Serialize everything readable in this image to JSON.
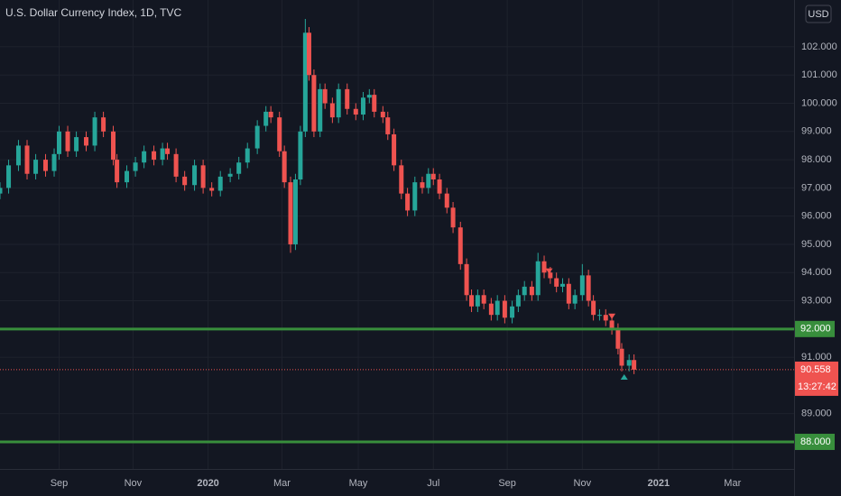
{
  "chart_data": {
    "type": "candlestick",
    "title": "U.S. Dollar Currency Index, 1D, TVC",
    "currency": "USD",
    "up_color": "#26a69a",
    "down_color": "#ef5350",
    "grid": true,
    "xlim": [
      0,
      645
    ],
    "ylim": [
      87.04,
      103.66
    ],
    "xticks": [
      {
        "value": 48,
        "label": "Sep"
      },
      {
        "value": 108,
        "label": "Nov"
      },
      {
        "value": 169,
        "label": "2020"
      },
      {
        "value": 229,
        "label": "Mar"
      },
      {
        "value": 291,
        "label": "May"
      },
      {
        "value": 352,
        "label": "Jul"
      },
      {
        "value": 412,
        "label": "Sep"
      },
      {
        "value": 473,
        "label": "Nov"
      },
      {
        "value": 535,
        "label": "2021"
      },
      {
        "value": 595,
        "label": "Mar"
      }
    ],
    "yticks": [
      {
        "value": 89,
        "label": "89.000"
      },
      {
        "value": 91,
        "label": "91.000"
      },
      {
        "value": 93,
        "label": "93.000"
      },
      {
        "value": 94,
        "label": "94.000"
      },
      {
        "value": 95,
        "label": "95.000"
      },
      {
        "value": 96,
        "label": "96.000"
      },
      {
        "value": 97,
        "label": "97.000"
      },
      {
        "value": 98,
        "label": "98.000"
      },
      {
        "value": 99,
        "label": "99.000"
      },
      {
        "value": 100,
        "label": "100.000"
      },
      {
        "value": 101,
        "label": "101.000"
      },
      {
        "value": 102,
        "label": "102.000"
      }
    ],
    "x": [
      0,
      7,
      15,
      22,
      29,
      37,
      44,
      48,
      55,
      62,
      70,
      77,
      84,
      92,
      95,
      103,
      110,
      117,
      125,
      132,
      136,
      143,
      150,
      158,
      165,
      172,
      179,
      187,
      194,
      201,
      209,
      216,
      220,
      227,
      231,
      236,
      240,
      244,
      248,
      251,
      255,
      260,
      264,
      270,
      275,
      282,
      289,
      295,
      300,
      304,
      311,
      315,
      320,
      326,
      331,
      337,
      343,
      348,
      352,
      357,
      363,
      368,
      374,
      379,
      383,
      388,
      393,
      399,
      404,
      410,
      416,
      421,
      426,
      432,
      437,
      442,
      447,
      452,
      457,
      462,
      467,
      473,
      478,
      482,
      487,
      492,
      497,
      502,
      505,
      511,
      515
    ],
    "open": [
      96.8,
      97.0,
      97.8,
      98.5,
      97.5,
      98.0,
      97.6,
      98.2,
      99.0,
      98.3,
      98.8,
      98.5,
      99.5,
      99.0,
      98.0,
      97.2,
      97.6,
      97.9,
      98.3,
      98.0,
      98.4,
      98.2,
      97.4,
      97.1,
      97.8,
      97.0,
      96.9,
      97.4,
      97.5,
      97.9,
      98.4,
      99.2,
      99.7,
      99.5,
      98.3,
      97.2,
      95.0,
      97.3,
      99.0,
      102.5,
      101.0,
      99.0,
      100.5,
      100.0,
      99.5,
      100.5,
      99.8,
      99.6,
      100.2,
      100.3,
      99.7,
      99.5,
      98.9,
      97.8,
      96.8,
      96.2,
      97.2,
      97.0,
      97.5,
      97.3,
      96.8,
      96.3,
      95.6,
      94.3,
      93.2,
      92.8,
      93.2,
      92.9,
      92.5,
      93.0,
      92.4,
      92.8,
      93.2,
      93.5,
      93.2,
      94.4,
      94.0,
      93.8,
      93.5,
      93.6,
      92.9,
      93.2,
      93.9,
      93.0,
      92.5,
      92.5,
      92.3,
      92.0,
      91.3,
      90.7,
      90.9
    ],
    "high": [
      97.2,
      98.0,
      98.7,
      98.7,
      98.2,
      98.2,
      98.4,
      99.2,
      99.2,
      99.0,
      99.0,
      99.7,
      99.7,
      99.2,
      98.2,
      97.8,
      98.1,
      98.5,
      98.5,
      98.6,
      98.6,
      98.4,
      97.6,
      98.0,
      98.0,
      97.2,
      97.6,
      97.7,
      98.1,
      98.6,
      99.4,
      99.9,
      99.9,
      99.7,
      98.5,
      97.4,
      97.5,
      99.2,
      102.99,
      102.7,
      101.2,
      100.7,
      100.7,
      100.2,
      100.7,
      100.7,
      100.0,
      100.4,
      100.5,
      100.5,
      99.9,
      99.7,
      99.1,
      98.0,
      97.0,
      97.4,
      97.4,
      97.7,
      97.7,
      97.5,
      97.0,
      96.5,
      95.8,
      94.5,
      93.4,
      93.4,
      93.4,
      93.1,
      93.2,
      93.2,
      93.0,
      93.4,
      93.7,
      93.7,
      94.7,
      94.6,
      94.2,
      94.0,
      93.8,
      93.8,
      93.4,
      94.3,
      94.1,
      93.2,
      92.7,
      92.7,
      92.5,
      92.2,
      91.5,
      91.1,
      91.1
    ],
    "low": [
      96.6,
      96.8,
      97.6,
      97.3,
      97.3,
      97.4,
      97.4,
      98.0,
      98.1,
      98.1,
      98.3,
      98.3,
      98.8,
      97.8,
      97.0,
      97.0,
      97.4,
      97.7,
      97.8,
      97.8,
      98.0,
      97.2,
      96.9,
      96.9,
      96.8,
      96.7,
      96.7,
      97.2,
      97.3,
      97.7,
      98.2,
      99.0,
      99.3,
      98.1,
      97.0,
      94.7,
      94.8,
      97.1,
      98.8,
      100.8,
      98.8,
      98.8,
      99.8,
      99.3,
      99.3,
      99.6,
      99.4,
      99.4,
      100.0,
      99.5,
      99.3,
      98.7,
      97.6,
      96.6,
      96.0,
      96.0,
      96.8,
      96.8,
      97.1,
      96.6,
      96.1,
      95.4,
      94.1,
      93.0,
      92.6,
      92.6,
      92.7,
      92.3,
      92.3,
      92.2,
      92.2,
      92.6,
      93.0,
      93.0,
      93.0,
      93.8,
      93.6,
      93.3,
      93.3,
      92.7,
      92.7,
      93.0,
      92.8,
      92.3,
      92.3,
      92.1,
      91.8,
      91.1,
      90.5,
      90.5,
      90.4
    ],
    "close": [
      97.0,
      97.8,
      98.5,
      97.5,
      98.0,
      97.6,
      98.2,
      99.0,
      98.3,
      98.8,
      98.5,
      99.5,
      99.0,
      98.0,
      97.2,
      97.6,
      97.9,
      98.3,
      98.0,
      98.4,
      98.2,
      97.4,
      97.1,
      97.8,
      97.0,
      96.9,
      97.4,
      97.5,
      97.9,
      98.4,
      99.2,
      99.7,
      99.5,
      98.3,
      97.2,
      95.0,
      97.3,
      99.0,
      102.5,
      101.0,
      99.0,
      100.5,
      100.0,
      99.5,
      100.5,
      99.8,
      99.6,
      100.2,
      100.3,
      99.7,
      99.5,
      98.9,
      97.8,
      96.8,
      96.2,
      97.2,
      97.0,
      97.5,
      97.3,
      96.8,
      96.3,
      95.6,
      94.3,
      93.2,
      92.8,
      93.2,
      92.9,
      92.5,
      93.0,
      92.4,
      92.8,
      93.2,
      93.5,
      93.2,
      94.4,
      94.0,
      93.8,
      93.5,
      93.6,
      92.9,
      93.2,
      93.9,
      93.0,
      92.5,
      92.5,
      92.3,
      92.0,
      91.3,
      90.7,
      90.9,
      90.558
    ],
    "levels": [
      {
        "value": 92,
        "label": "92.000",
        "color": "#388e3c"
      },
      {
        "value": 88,
        "label": "88.000",
        "color": "#388e3c"
      }
    ],
    "last_price": {
      "value": 90.558,
      "label": "90.558",
      "countdown": "13:27:42",
      "color": "#ef5350"
    },
    "markers": [
      {
        "x": 446,
        "y": 94.05,
        "direction": "down",
        "color": "#ef5350"
      },
      {
        "x": 497,
        "y": 92.45,
        "direction": "down",
        "color": "#ef5350"
      },
      {
        "x": 507,
        "y": 90.3,
        "direction": "up",
        "color": "#26a69a"
      }
    ]
  }
}
